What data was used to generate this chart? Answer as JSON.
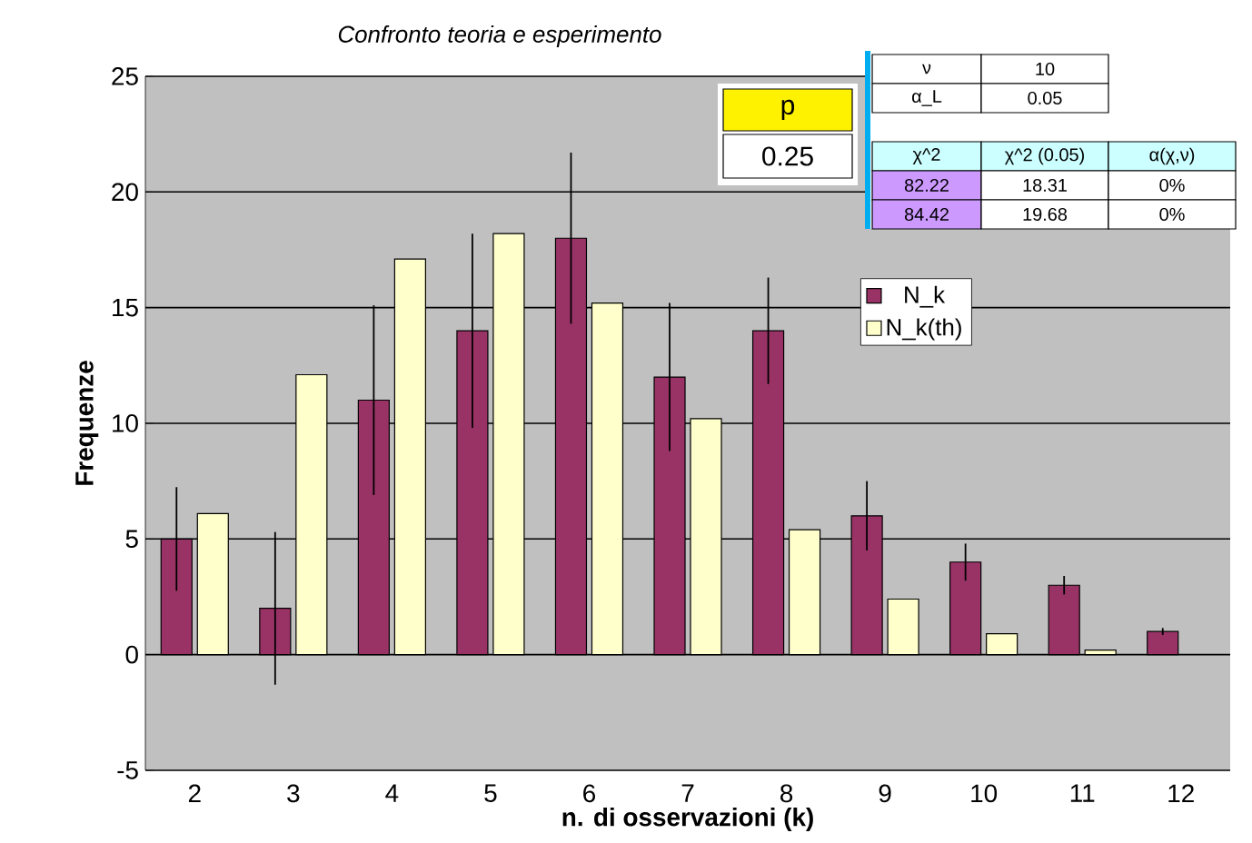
{
  "chart_data": {
    "type": "bar",
    "title": "Confronto teoria e esperimento",
    "xlabel": "n. di osservazioni (k)",
    "ylabel": "Frequenze",
    "categories": [
      "2",
      "3",
      "4",
      "5",
      "6",
      "7",
      "8",
      "9",
      "10",
      "11",
      "12"
    ],
    "series": [
      {
        "name": "N_k",
        "color": "#993366",
        "values": [
          5,
          2,
          11,
          14,
          18,
          12,
          14,
          6,
          4,
          3,
          1
        ],
        "errors": [
          2.24,
          3.3,
          4.1,
          4.2,
          3.7,
          3.2,
          2.3,
          1.5,
          0.8,
          0.4,
          0.15
        ]
      },
      {
        "name": "N_k(th)",
        "color": "#ffffcc",
        "values": [
          6.1,
          12.1,
          17.1,
          18.2,
          15.2,
          10.2,
          5.4,
          2.4,
          0.9,
          0.2,
          null
        ]
      }
    ],
    "ylim": [
      -5,
      25
    ],
    "yticks": [
      -5,
      0,
      5,
      10,
      15,
      20,
      25
    ],
    "grid": "y",
    "legend": "top right",
    "annotations": [
      "p",
      "0.25",
      "ν",
      "10",
      "α_L",
      "0.05",
      "χ^2",
      "χ^2 (0.05)",
      "α(χ,ν)",
      "82.22",
      "18.31",
      "0%",
      "84.42",
      "19.68",
      "0%"
    ]
  }
}
